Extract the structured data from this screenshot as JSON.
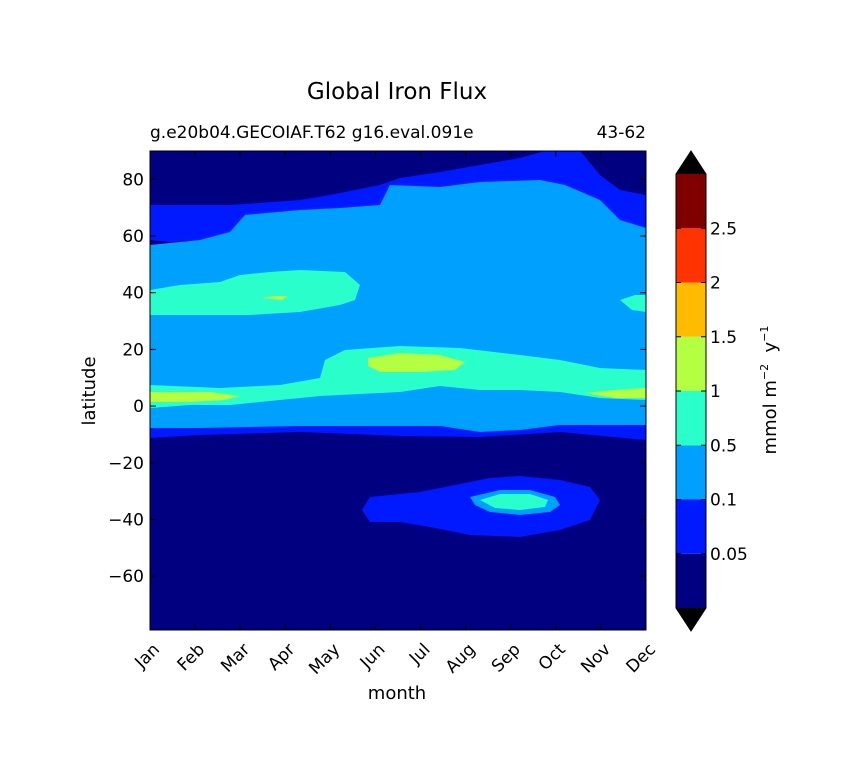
{
  "chart_data": {
    "type": "heatmap",
    "title": "Global Iron Flux",
    "subtitle_left": "g.e20b04.GECOIAF.T62 g16.eval.091e",
    "subtitle_right": "43-62",
    "xlabel": "month",
    "ylabel": "latitude",
    "x_categories": [
      "Jan",
      "Feb",
      "Mar",
      "Apr",
      "May",
      "Jun",
      "Jul",
      "Aug",
      "Sep",
      "Oct",
      "Nov",
      "Dec"
    ],
    "ylim": [
      -79,
      90
    ],
    "yticks": [
      "80",
      "60",
      "40",
      "20",
      "0",
      "−20",
      "−40",
      "−60"
    ],
    "yticks_values": [
      80,
      60,
      40,
      20,
      0,
      -20,
      -40,
      -60
    ],
    "colorbar": {
      "label_text": "mmol m",
      "label_sup1": "−2",
      "label_mid": "  y",
      "label_sup2": "−1",
      "levels": [
        0,
        0.05,
        0.1,
        0.5,
        1,
        1.5,
        2,
        2.5,
        3
      ],
      "tick_labels": [
        "0.05",
        "0.1",
        "0.5",
        "1",
        "1.5",
        "2",
        "2.5"
      ],
      "colors": [
        "#000080",
        "#0019ff",
        "#00a0ff",
        "#2affcc",
        "#b5ff42",
        "#ffbb00",
        "#ff3300",
        "#800000"
      ],
      "extend": "both",
      "extend_color": "#000000"
    },
    "regions": [
      {
        "level": 0.05,
        "color": "#0019ff",
        "desc": "band from 58 N to 80 N and 35-46 S patch"
      },
      {
        "level": 0.1,
        "color": "#00a0ff",
        "desc": "broad band from -8 to 75 N"
      },
      {
        "level": 0.5,
        "color": "#2affcc",
        "desc": "patches near 40 N and equatorial band"
      },
      {
        "level": 1,
        "color": "#b5ff42",
        "desc": "small patches near 5 N and 15 N"
      }
    ]
  }
}
